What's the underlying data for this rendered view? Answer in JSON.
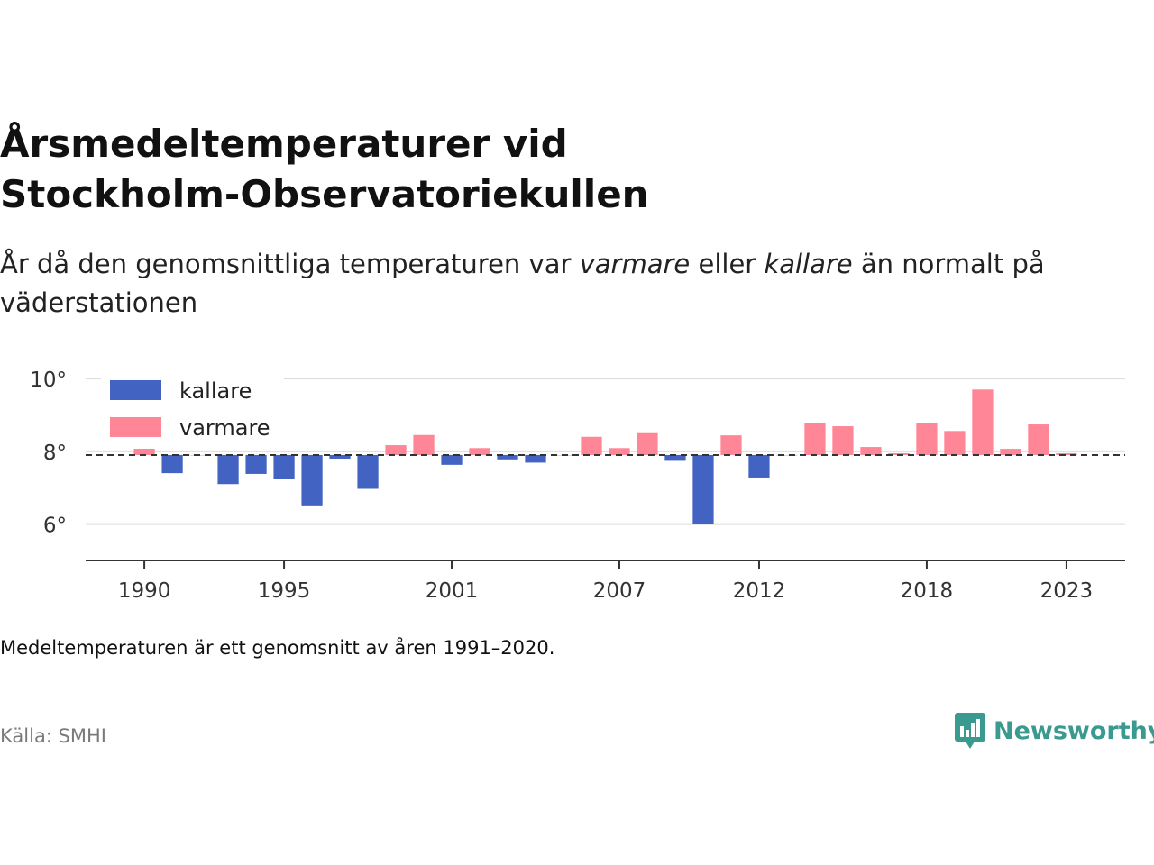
{
  "header": {
    "title_line1": "Årsmedeltemperaturer vid",
    "title_line2": "Stockholm-Observatoriekullen",
    "subtitle": {
      "part1": "År då den genomsnittliga temperaturen var ",
      "warmer": "varmare",
      "part2": " eller ",
      "colder": "kallare",
      "part3": " än normalt på väderstationen"
    }
  },
  "footer": {
    "note": "Medeltemperaturen är ett genomsnitt av åren 1991–2020.",
    "source_label": "Källa: SMHI",
    "logo_text": "Newsworthy",
    "logo_icon": "chart-bubble-icon"
  },
  "colors": {
    "colder": "#4263c2",
    "warmer": "#ff8696",
    "grid": "#dddddd",
    "axis": "#333333",
    "baseline": "#333333",
    "logo": "#3a9a8f"
  },
  "chart_data": {
    "type": "bar",
    "baseline": 7.9,
    "baseline_style": "dashed",
    "ylim": [
      5,
      10.5
    ],
    "yticks": [
      {
        "value": 6,
        "label": "6°"
      },
      {
        "value": 8,
        "label": "8°"
      },
      {
        "value": 10,
        "label": "10°"
      }
    ],
    "xlim": [
      1987.9,
      2025.1
    ],
    "xticks": [
      1990,
      1995,
      2001,
      2007,
      2012,
      2018,
      2023
    ],
    "legend": {
      "position": "top-left",
      "entries": [
        {
          "key": "colder",
          "label": "kallare"
        },
        {
          "key": "warmer",
          "label": "varmare"
        }
      ]
    },
    "grid": true,
    "x": [
      1990,
      1991,
      1992,
      1993,
      1994,
      1995,
      1996,
      1997,
      1998,
      1999,
      2000,
      2001,
      2002,
      2003,
      2004,
      2005,
      2006,
      2007,
      2008,
      2009,
      2010,
      2011,
      2012,
      2013,
      2014,
      2015,
      2016,
      2017,
      2018,
      2019,
      2020,
      2021,
      2022,
      2023
    ],
    "values": [
      8.28,
      7.4,
      7.9,
      7.1,
      7.38,
      7.23,
      6.49,
      7.8,
      6.97,
      8.17,
      8.45,
      7.63,
      8.09,
      7.78,
      7.69,
      7.9,
      8.4,
      8.09,
      8.5,
      7.74,
      6.0,
      8.44,
      7.28,
      7.9,
      8.77,
      8.69,
      8.12,
      7.95,
      8.78,
      8.56,
      9.7,
      8.07,
      8.74,
      7.95
    ]
  }
}
